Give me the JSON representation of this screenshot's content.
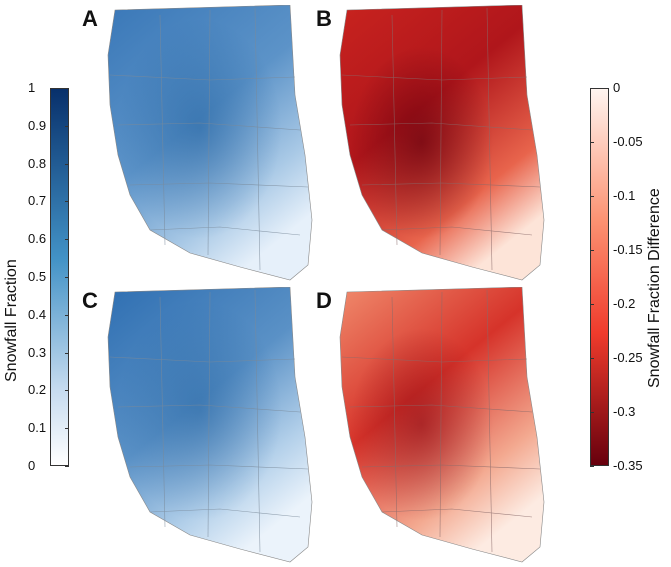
{
  "panels": [
    {
      "label": "A",
      "scale": "snowfall-fraction"
    },
    {
      "label": "B",
      "scale": "snowfall-fraction-difference"
    },
    {
      "label": "C",
      "scale": "snowfall-fraction"
    },
    {
      "label": "D",
      "scale": "snowfall-fraction-difference"
    }
  ],
  "left_colorbar": {
    "title": "Snowfall Fraction",
    "ticks": [
      "1",
      "0.9",
      "0.8",
      "0.7",
      "0.6",
      "0.5",
      "0.4",
      "0.3",
      "0.2",
      "0.1",
      "0"
    ],
    "range": [
      0,
      1
    ],
    "color_low": "#ffffff",
    "color_high": "#08306b"
  },
  "right_colorbar": {
    "title": "Snowfall Fraction Difference",
    "ticks": [
      "0",
      "-0.05",
      "-0.1",
      "-0.15",
      "-0.2",
      "-0.25",
      "-0.3",
      "-0.35"
    ],
    "range": [
      -0.35,
      0
    ],
    "color_low": "#67000d",
    "color_high": "#fff5f0"
  }
}
